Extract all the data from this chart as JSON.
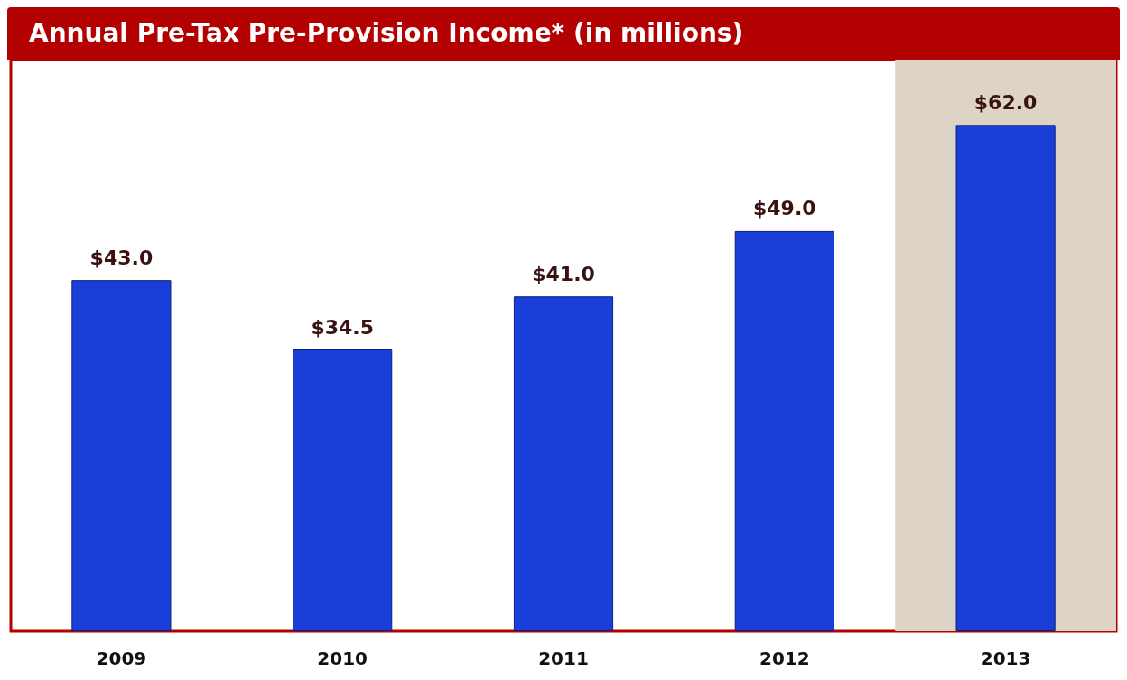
{
  "chart_data": {
    "type": "bar",
    "title": "Annual Pre-Tax Pre-Provision Income* (in millions)",
    "categories": [
      "2009",
      "2010",
      "2011",
      "2012",
      "2013"
    ],
    "values": [
      43.0,
      34.5,
      41.0,
      49.0,
      62.0
    ],
    "value_labels": [
      "$43.0",
      "$34.5",
      "$41.0",
      "$49.0",
      "$62.0"
    ],
    "color": "#1a3ed8",
    "bands": [
      {
        "axis": "x",
        "from": "2013",
        "to": "2013",
        "color": "#ddd4c5"
      }
    ]
  }
}
